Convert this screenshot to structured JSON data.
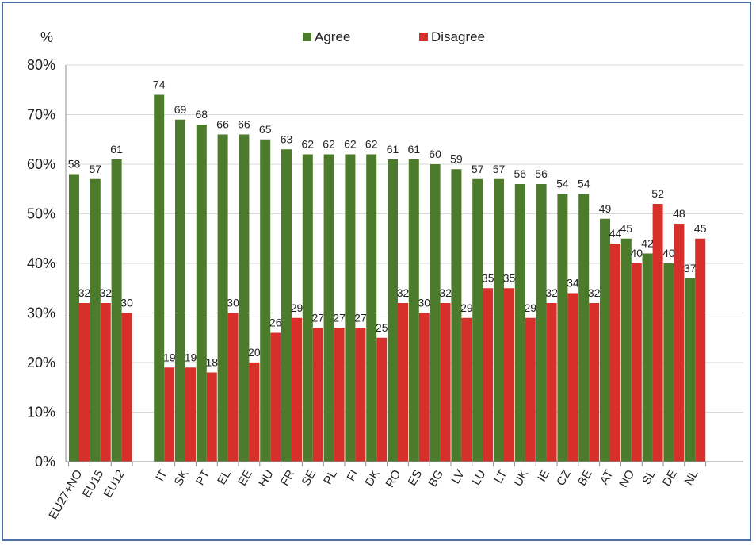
{
  "chart_data": {
    "type": "bar",
    "ylabel": "%",
    "ylim": [
      0,
      80
    ],
    "yticks": [
      "0%",
      "10%",
      "20%",
      "30%",
      "40%",
      "50%",
      "60%",
      "70%",
      "80%"
    ],
    "grid": "horizontal",
    "legend_position": "top-center",
    "categories": [
      "EU27+NO",
      "EU15",
      "EU12",
      "IT",
      "SK",
      "PT",
      "EL",
      "EE",
      "HU",
      "FR",
      "SE",
      "PL",
      "FI",
      "DK",
      "RO",
      "ES",
      "BG",
      "LV",
      "LU",
      "LT",
      "UK",
      "IE",
      "CZ",
      "BE",
      "AT",
      "NO",
      "SL",
      "DE",
      "NL"
    ],
    "series": [
      {
        "name": "Agree",
        "color": "#4b7b2b",
        "values": [
          58,
          57,
          61,
          74,
          69,
          68,
          66,
          66,
          65,
          63,
          62,
          62,
          62,
          62,
          61,
          61,
          60,
          59,
          57,
          57,
          56,
          56,
          54,
          54,
          49,
          45,
          42,
          40,
          37
        ]
      },
      {
        "name": "Disagree",
        "color": "#d7302a",
        "values": [
          32,
          32,
          30,
          19,
          19,
          18,
          30,
          20,
          26,
          29,
          27,
          27,
          27,
          25,
          32,
          30,
          32,
          29,
          35,
          35,
          29,
          32,
          34,
          32,
          44,
          40,
          52,
          48,
          45
        ]
      }
    ]
  }
}
